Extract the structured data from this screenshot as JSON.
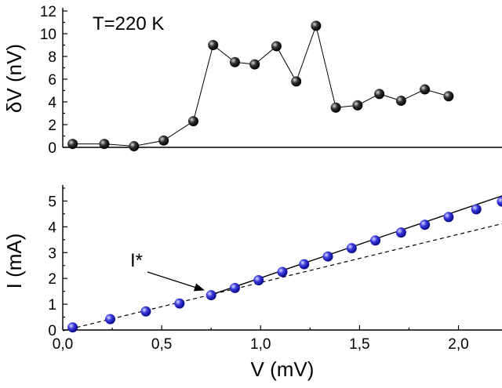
{
  "chart_data": [
    {
      "type": "line",
      "annotation": "T=220 K",
      "xlabel": "",
      "ylabel": "δV (nV)",
      "xlim": [
        0.0,
        2.22
      ],
      "ylim": [
        0,
        12
      ],
      "yticks": [
        "0",
        "2",
        "4",
        "6",
        "8",
        "10",
        "12"
      ],
      "series": [
        {
          "x": [
            0.05,
            0.21,
            0.36,
            0.51,
            0.66,
            0.76,
            0.87,
            0.97,
            1.08,
            1.18,
            1.28,
            1.38,
            1.49,
            1.6,
            1.71,
            1.83,
            1.95
          ],
          "values": [
            0.3,
            0.3,
            0.1,
            0.6,
            2.3,
            9.0,
            7.5,
            7.3,
            8.9,
            5.8,
            10.7,
            3.5,
            3.7,
            4.7,
            4.1,
            5.1,
            4.5
          ],
          "color": "#000000"
        }
      ]
    },
    {
      "type": "scatter",
      "annotation": "I*",
      "xlabel": "V (mV)",
      "ylabel": "I (mA)",
      "xlim": [
        0.0,
        2.22
      ],
      "ylim": [
        0,
        5.5
      ],
      "xticks": [
        "0,0",
        "0,5",
        "1,0",
        "1,5",
        "2,0"
      ],
      "yticks": [
        "0",
        "1",
        "2",
        "3",
        "4",
        "5"
      ],
      "series": [
        {
          "x": [
            0.05,
            0.24,
            0.42,
            0.59,
            0.75,
            0.87,
            0.99,
            1.11,
            1.22,
            1.34,
            1.46,
            1.58,
            1.71,
            1.83,
            1.95,
            2.09,
            2.22
          ],
          "values": [
            0.1,
            0.42,
            0.72,
            1.03,
            1.35,
            1.63,
            1.93,
            2.25,
            2.55,
            2.85,
            3.17,
            3.47,
            3.78,
            4.08,
            4.38,
            4.68,
            4.98
          ],
          "color": "#2222cc"
        }
      ],
      "fit_solid": {
        "x": [
          0.74,
          2.22
        ],
        "values": [
          1.34,
          5.2
        ]
      },
      "fit_dashed": {
        "x": [
          0.0,
          2.22
        ],
        "values": [
          -0.03,
          4.12
        ]
      },
      "arrow_target": {
        "x": 0.72,
        "y": 1.55
      }
    }
  ]
}
